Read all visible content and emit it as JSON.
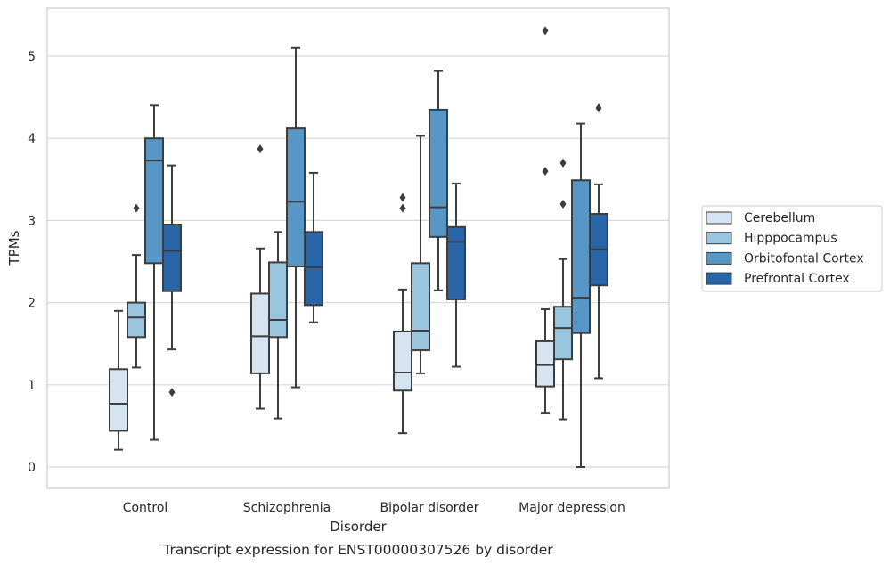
{
  "caption": "Transcript expression for ENST00000307526 by disorder",
  "chart_data": {
    "type": "box",
    "xlabel": "Disorder",
    "ylabel": "TPMs",
    "ylim": [
      -0.25,
      5.6
    ],
    "yticks": [
      0,
      1,
      2,
      3,
      4,
      5
    ],
    "grid": "horizontal",
    "legend_position": "right",
    "categories": [
      "Control",
      "Schizophrenia",
      "Bipolar disorder",
      "Major depression"
    ],
    "series": [
      {
        "name": "Cerebellum",
        "color": "#d5e4f2",
        "boxes": [
          {
            "whislo": 0.21,
            "q1": 0.44,
            "med": 0.77,
            "q3": 1.19,
            "whishi": 1.9,
            "fliers": []
          },
          {
            "whislo": 0.71,
            "q1": 1.14,
            "med": 1.59,
            "q3": 2.11,
            "whishi": 2.66,
            "fliers": [
              3.87
            ]
          },
          {
            "whislo": 0.41,
            "q1": 0.93,
            "med": 1.15,
            "q3": 1.65,
            "whishi": 2.16,
            "fliers": [
              3.15,
              3.28
            ]
          },
          {
            "whislo": 0.66,
            "q1": 0.98,
            "med": 1.24,
            "q3": 1.53,
            "whishi": 1.92,
            "fliers": [
              3.6,
              5.31
            ]
          }
        ]
      },
      {
        "name": "Hipppocampus",
        "color": "#9ac5de",
        "boxes": [
          {
            "whislo": 1.21,
            "q1": 1.58,
            "med": 1.82,
            "q3": 2.0,
            "whishi": 2.58,
            "fliers": [
              3.15
            ]
          },
          {
            "whislo": 0.59,
            "q1": 1.58,
            "med": 1.79,
            "q3": 2.49,
            "whishi": 2.86,
            "fliers": []
          },
          {
            "whislo": 1.14,
            "q1": 1.42,
            "med": 1.66,
            "q3": 2.48,
            "whishi": 4.03,
            "fliers": []
          },
          {
            "whislo": 0.58,
            "q1": 1.31,
            "med": 1.69,
            "q3": 1.95,
            "whishi": 2.53,
            "fliers": [
              3.2,
              3.7
            ]
          }
        ]
      },
      {
        "name": "Orbitofontal Cortex",
        "color": "#5697c6",
        "boxes": [
          {
            "whislo": 0.33,
            "q1": 2.48,
            "med": 3.73,
            "q3": 4.0,
            "whishi": 4.4,
            "fliers": []
          },
          {
            "whislo": 0.97,
            "q1": 2.44,
            "med": 3.23,
            "q3": 4.12,
            "whishi": 5.1,
            "fliers": []
          },
          {
            "whislo": 2.15,
            "q1": 2.8,
            "med": 3.16,
            "q3": 4.35,
            "whishi": 4.82,
            "fliers": []
          },
          {
            "whislo": 0.0,
            "q1": 1.63,
            "med": 2.06,
            "q3": 3.49,
            "whishi": 4.18,
            "fliers": []
          }
        ]
      },
      {
        "name": "Prefrontal Cortex",
        "color": "#2966a8",
        "boxes": [
          {
            "whislo": 1.43,
            "q1": 2.14,
            "med": 2.63,
            "q3": 2.95,
            "whishi": 3.67,
            "fliers": [
              0.91
            ]
          },
          {
            "whislo": 1.76,
            "q1": 1.97,
            "med": 2.43,
            "q3": 2.86,
            "whishi": 3.58,
            "fliers": []
          },
          {
            "whislo": 1.22,
            "q1": 2.04,
            "med": 2.74,
            "q3": 2.92,
            "whishi": 3.45,
            "fliers": []
          },
          {
            "whislo": 1.08,
            "q1": 2.21,
            "med": 2.65,
            "q3": 3.08,
            "whishi": 3.44,
            "fliers": [
              4.37
            ]
          }
        ]
      }
    ]
  }
}
